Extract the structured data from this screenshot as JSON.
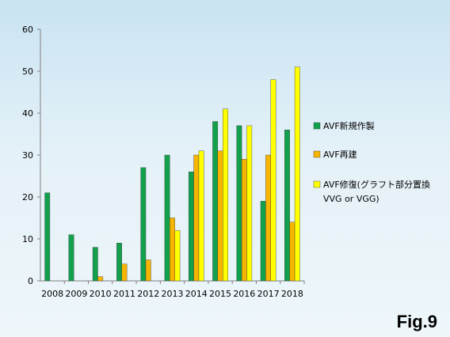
{
  "chart_data": {
    "type": "bar",
    "categories": [
      "2008",
      "2009",
      "2010",
      "2011",
      "2012",
      "2013",
      "2014",
      "2015",
      "2016",
      "2017",
      "2018"
    ],
    "series": [
      {
        "name": "AVF新規作製",
        "color": "#12a04c",
        "values": [
          21,
          11,
          8,
          9,
          27,
          30,
          26,
          38,
          37,
          19,
          36
        ]
      },
      {
        "name": "AVF再建",
        "color": "#f7b500",
        "values": [
          0,
          0,
          1,
          4,
          5,
          15,
          30,
          31,
          29,
          30,
          14
        ]
      },
      {
        "name": "AVF修復(グラフト部分置換",
        "name_line2": "VVG or VGG)",
        "color": "#ffff00",
        "values": [
          0,
          0,
          0,
          0,
          0,
          12,
          31,
          41,
          37,
          48,
          51
        ]
      }
    ],
    "ylim": [
      0,
      60
    ],
    "yticks": [
      0,
      10,
      20,
      30,
      40,
      50,
      60
    ],
    "grid": false,
    "legend": "right"
  },
  "figure_label": "Fig.9"
}
